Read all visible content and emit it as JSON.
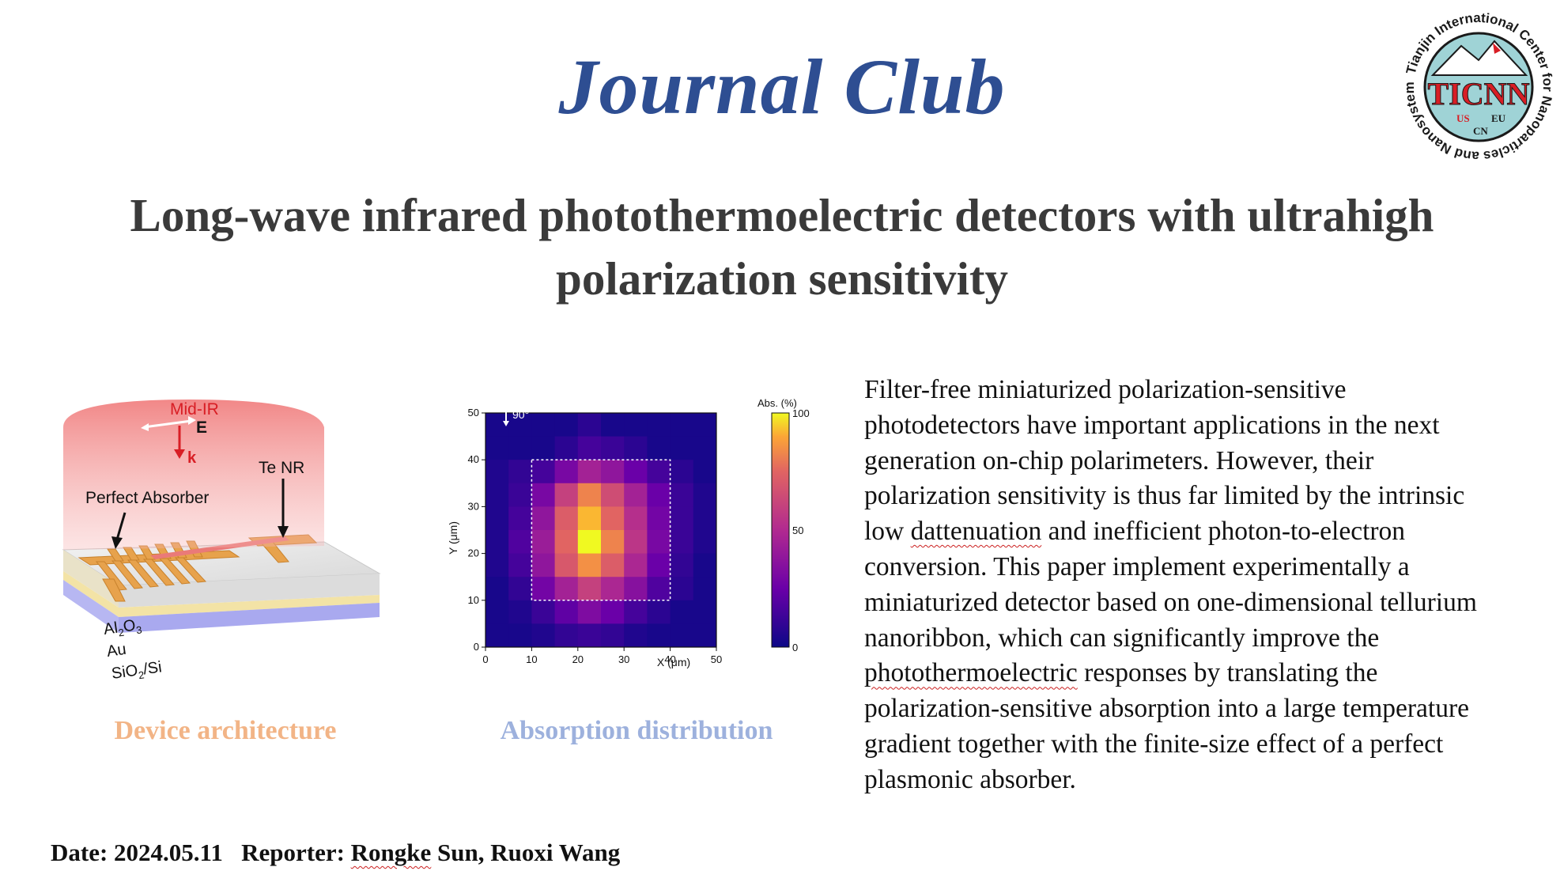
{
  "slide": {
    "title": "Journal Club",
    "subtitle_line1": "Long-wave infrared photothermoelectric detectors with ultrahigh",
    "subtitle_line2": "polarization sensitivity"
  },
  "logo": {
    "ring_text": "Tianjin International Center for Nanoparticles and Nanosystems",
    "center_text": "TICNN",
    "labels": [
      "US",
      "EU",
      "CN"
    ],
    "colors": {
      "circle": "#9fd3d6",
      "red": "#d81e25",
      "dark": "#1a1a1a"
    }
  },
  "device_figure": {
    "labels": {
      "mid_ir": "Mid-IR",
      "e_field": "E",
      "k_vector": "k",
      "te_nr": "Te NR",
      "perfect_absorber": "Perfect Absorber",
      "al2o3_base": "Al",
      "al2o3_sub1": "2",
      "al2o3_mid": "O",
      "al2o3_sub2": "3",
      "au": "Au",
      "sio2_base": "SiO",
      "sio2_sub": "2",
      "sio2_tail": "/Si"
    },
    "caption": "Device architecture"
  },
  "chart_data": {
    "type": "heatmap",
    "annotation": "90°",
    "xlabel": "X (μm)",
    "ylabel": "Y (μm)",
    "colorbar_label": "Abs. (%)",
    "colorbar_ticks": [
      "100",
      "50",
      "0"
    ],
    "xlim": [
      0,
      50
    ],
    "ylim": [
      0,
      50
    ],
    "x_ticks": [
      "0",
      "10",
      "20",
      "30",
      "40",
      "50"
    ],
    "y_ticks": [
      "0",
      "10",
      "20",
      "30",
      "40",
      "50"
    ],
    "grid_size": 10,
    "dashed_box_um": [
      10,
      10,
      40,
      40
    ],
    "values_top_to_bottom": [
      [
        3,
        3,
        3,
        3,
        8,
        3,
        3,
        3,
        3,
        3
      ],
      [
        3,
        3,
        3,
        8,
        15,
        12,
        8,
        3,
        3,
        3
      ],
      [
        5,
        10,
        15,
        30,
        45,
        38,
        25,
        15,
        8,
        3
      ],
      [
        5,
        12,
        30,
        60,
        82,
        65,
        45,
        25,
        12,
        5
      ],
      [
        5,
        15,
        38,
        72,
        92,
        75,
        52,
        28,
        12,
        5
      ],
      [
        5,
        18,
        42,
        75,
        100,
        82,
        55,
        30,
        12,
        5
      ],
      [
        5,
        15,
        38,
        70,
        85,
        72,
        48,
        25,
        10,
        3
      ],
      [
        3,
        10,
        28,
        45,
        60,
        48,
        35,
        18,
        8,
        3
      ],
      [
        3,
        5,
        12,
        22,
        32,
        25,
        15,
        8,
        3,
        3
      ],
      [
        3,
        3,
        5,
        10,
        12,
        10,
        5,
        3,
        3,
        3
      ]
    ],
    "caption": "Absorption distribution"
  },
  "abstract": {
    "lines": [
      [
        "Filter-free miniaturized polarization-sensitive"
      ],
      [
        "photodetectors have important applications in the next"
      ],
      [
        "generation on-chip polarimeters. However, their"
      ],
      [
        "polarization sensitivity is thus far limited by the intrinsic"
      ],
      [
        "low ",
        "dattenuation",
        " and inefficient photon-to-electron"
      ],
      [
        "conversion. This paper implement experimentally a"
      ],
      [
        "miniaturized detector based on one-dimensional tellurium"
      ],
      [
        "nanoribbon, which can significantly improve the"
      ],
      [
        "photothermoelectric",
        " responses by translating the"
      ],
      [
        "polarization-sensitive absorption into a large temperature"
      ],
      [
        "gradient together with the finite-size effect of a perfect"
      ],
      [
        "plasmonic absorber."
      ]
    ]
  },
  "footer": {
    "date_label": "Date: 2024.05.11",
    "reporter_label": "Reporter: ",
    "reporter_name_1": "Rongke",
    "reporter_rest": " Sun, Ruoxi Wang"
  }
}
